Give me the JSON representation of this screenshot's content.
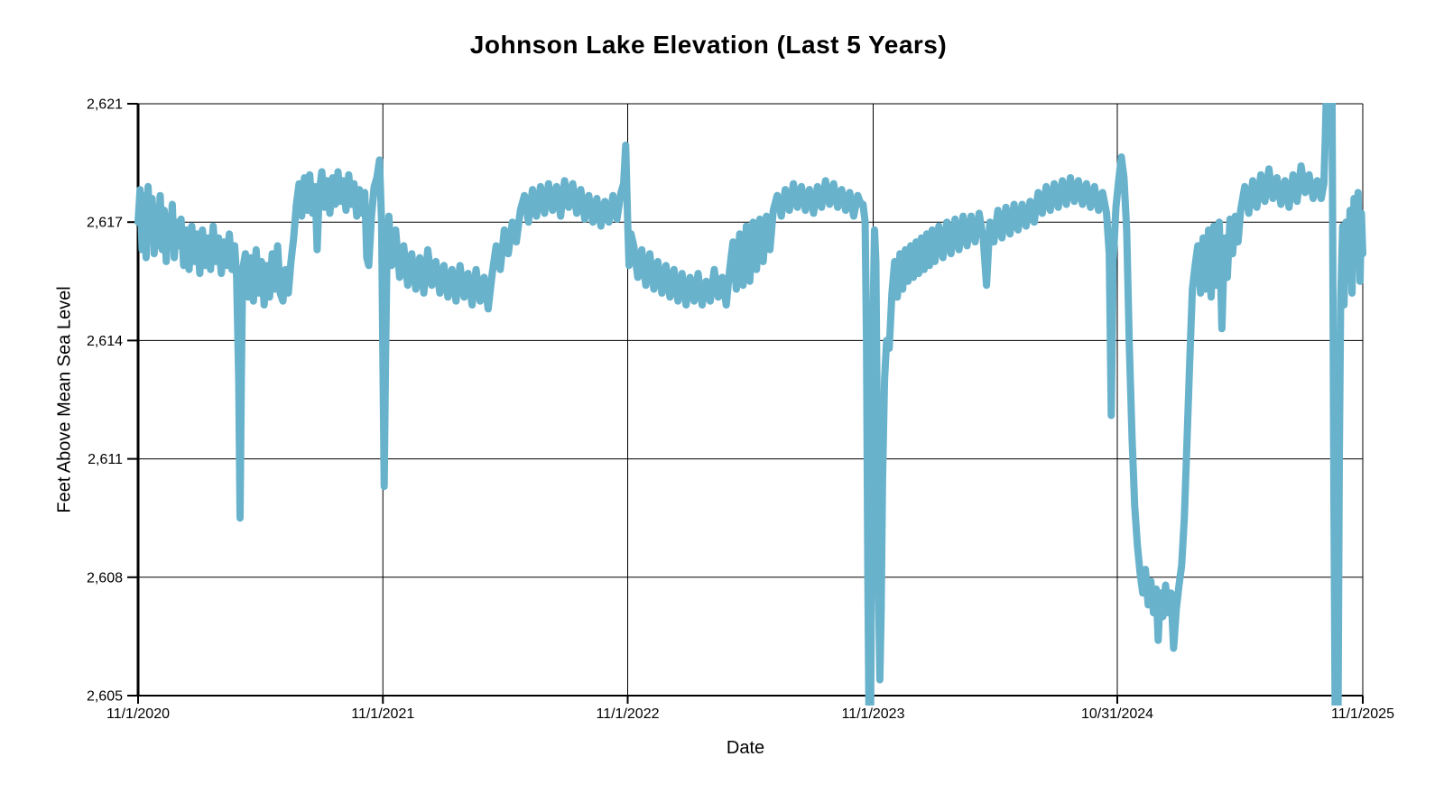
{
  "chart": {
    "title": "Johnson Lake Elevation (Last 5 Years)",
    "x_axis_title": "Date",
    "y_axis_title": "Feet Above Mean Sea Level"
  },
  "chart_data": {
    "type": "line",
    "title": "Johnson Lake Elevation (Last 5 Years)",
    "xlabel": "Date",
    "ylabel": "Feet Above Mean Sea Level",
    "legend": false,
    "grid": true,
    "line_color": "#68b2cc",
    "grid_color": "#000000",
    "background_color": "#ffffff",
    "ylim": [
      2605,
      2621
    ],
    "y_ticks": [
      2605,
      2608,
      2611,
      2614,
      2617,
      2621
    ],
    "y_tick_labels": [
      "2,605",
      "2,608",
      "2,611",
      "2,614",
      "2,617",
      "2,621"
    ],
    "x_tick_labels": [
      "11/1/2020",
      "11/1/2021",
      "11/1/2022",
      "11/1/2023",
      "10/31/2024",
      "11/1/2025"
    ],
    "x_tick_days": [
      0,
      365,
      730,
      1096,
      1460,
      1826
    ],
    "x_unit": "days since 11/1/2020",
    "y_unit": "feet above mean sea level",
    "points_day_value": [
      [
        0,
        2617.0
      ],
      [
        3,
        2618.1
      ],
      [
        6,
        2616.3
      ],
      [
        9,
        2617.9
      ],
      [
        12,
        2616.1
      ],
      [
        15,
        2618.2
      ],
      [
        18,
        2616.6
      ],
      [
        21,
        2617.8
      ],
      [
        24,
        2616.2
      ],
      [
        27,
        2617.5
      ],
      [
        30,
        2616.4
      ],
      [
        33,
        2617.9
      ],
      [
        36,
        2616.3
      ],
      [
        39,
        2617.4
      ],
      [
        42,
        2616.0
      ],
      [
        45,
        2617.2
      ],
      [
        48,
        2616.5
      ],
      [
        51,
        2617.6
      ],
      [
        54,
        2616.1
      ],
      [
        57,
        2617.0
      ],
      [
        60,
        2616.4
      ],
      [
        64,
        2617.1
      ],
      [
        68,
        2615.9
      ],
      [
        72,
        2616.8
      ],
      [
        76,
        2615.8
      ],
      [
        80,
        2616.9
      ],
      [
        84,
        2616.0
      ],
      [
        88,
        2616.7
      ],
      [
        92,
        2615.7
      ],
      [
        96,
        2616.8
      ],
      [
        100,
        2615.9
      ],
      [
        104,
        2616.6
      ],
      [
        108,
        2615.8
      ],
      [
        112,
        2616.9
      ],
      [
        116,
        2616.0
      ],
      [
        120,
        2616.6
      ],
      [
        124,
        2615.7
      ],
      [
        128,
        2616.5
      ],
      [
        132,
        2615.9
      ],
      [
        136,
        2616.7
      ],
      [
        140,
        2615.8
      ],
      [
        144,
        2616.4
      ],
      [
        147,
        2615.6
      ],
      [
        150,
        2613.0
      ],
      [
        152,
        2609.5
      ],
      [
        154,
        2613.0
      ],
      [
        156,
        2615.8
      ],
      [
        160,
        2616.2
      ],
      [
        164,
        2615.1
      ],
      [
        168,
        2616.1
      ],
      [
        172,
        2615.0
      ],
      [
        176,
        2616.3
      ],
      [
        180,
        2615.2
      ],
      [
        184,
        2616.0
      ],
      [
        188,
        2614.9
      ],
      [
        192,
        2615.9
      ],
      [
        196,
        2615.1
      ],
      [
        200,
        2616.2
      ],
      [
        204,
        2615.3
      ],
      [
        208,
        2616.4
      ],
      [
        212,
        2615.2
      ],
      [
        216,
        2615.0
      ],
      [
        220,
        2615.8
      ],
      [
        224,
        2615.2
      ],
      [
        228,
        2616.0
      ],
      [
        232,
        2616.6
      ],
      [
        236,
        2617.6
      ],
      [
        240,
        2618.3
      ],
      [
        244,
        2617.2
      ],
      [
        248,
        2618.5
      ],
      [
        252,
        2617.4
      ],
      [
        256,
        2618.6
      ],
      [
        260,
        2617.3
      ],
      [
        264,
        2618.2
      ],
      [
        267,
        2616.3
      ],
      [
        270,
        2618.0
      ],
      [
        274,
        2618.7
      ],
      [
        278,
        2617.5
      ],
      [
        282,
        2618.4
      ],
      [
        286,
        2617.3
      ],
      [
        290,
        2618.5
      ],
      [
        294,
        2617.6
      ],
      [
        298,
        2618.7
      ],
      [
        302,
        2617.7
      ],
      [
        306,
        2618.4
      ],
      [
        310,
        2617.4
      ],
      [
        314,
        2618.6
      ],
      [
        318,
        2617.6
      ],
      [
        322,
        2618.3
      ],
      [
        326,
        2617.2
      ],
      [
        330,
        2618.1
      ],
      [
        334,
        2617.3
      ],
      [
        338,
        2618.0
      ],
      [
        341,
        2616.1
      ],
      [
        344,
        2615.9
      ],
      [
        348,
        2617.2
      ],
      [
        352,
        2618.2
      ],
      [
        356,
        2618.5
      ],
      [
        360,
        2619.1
      ],
      [
        363,
        2617.0
      ],
      [
        365,
        2613.5
      ],
      [
        367,
        2610.3
      ],
      [
        369,
        2613.5
      ],
      [
        371,
        2616.0
      ],
      [
        374,
        2617.2
      ],
      [
        378,
        2615.9
      ],
      [
        384,
        2616.8
      ],
      [
        390,
        2615.6
      ],
      [
        396,
        2616.4
      ],
      [
        402,
        2615.4
      ],
      [
        408,
        2616.2
      ],
      [
        414,
        2615.3
      ],
      [
        420,
        2616.1
      ],
      [
        426,
        2615.2
      ],
      [
        432,
        2616.3
      ],
      [
        438,
        2615.4
      ],
      [
        444,
        2616.0
      ],
      [
        450,
        2615.2
      ],
      [
        456,
        2615.9
      ],
      [
        462,
        2615.1
      ],
      [
        468,
        2615.8
      ],
      [
        474,
        2615.0
      ],
      [
        480,
        2615.9
      ],
      [
        486,
        2615.1
      ],
      [
        492,
        2615.7
      ],
      [
        498,
        2614.9
      ],
      [
        504,
        2615.8
      ],
      [
        510,
        2615.0
      ],
      [
        516,
        2615.6
      ],
      [
        522,
        2614.8
      ],
      [
        528,
        2615.7
      ],
      [
        534,
        2616.4
      ],
      [
        540,
        2615.8
      ],
      [
        546,
        2616.8
      ],
      [
        552,
        2616.2
      ],
      [
        558,
        2617.0
      ],
      [
        564,
        2616.5
      ],
      [
        570,
        2617.4
      ],
      [
        576,
        2617.9
      ],
      [
        582,
        2617.0
      ],
      [
        588,
        2618.1
      ],
      [
        594,
        2617.2
      ],
      [
        600,
        2618.2
      ],
      [
        606,
        2617.3
      ],
      [
        612,
        2618.3
      ],
      [
        618,
        2617.4
      ],
      [
        624,
        2618.2
      ],
      [
        630,
        2617.2
      ],
      [
        636,
        2618.4
      ],
      [
        642,
        2617.5
      ],
      [
        648,
        2618.3
      ],
      [
        654,
        2617.3
      ],
      [
        660,
        2618.1
      ],
      [
        666,
        2617.1
      ],
      [
        672,
        2617.9
      ],
      [
        678,
        2617.0
      ],
      [
        684,
        2617.8
      ],
      [
        690,
        2616.9
      ],
      [
        696,
        2617.7
      ],
      [
        702,
        2617.0
      ],
      [
        708,
        2617.9
      ],
      [
        714,
        2617.1
      ],
      [
        720,
        2618.0
      ],
      [
        724,
        2618.3
      ],
      [
        727,
        2619.6
      ],
      [
        730,
        2617.0
      ],
      [
        732,
        2615.9
      ],
      [
        735,
        2616.7
      ],
      [
        739,
        2616.4
      ],
      [
        745,
        2615.6
      ],
      [
        751,
        2616.3
      ],
      [
        757,
        2615.4
      ],
      [
        763,
        2616.2
      ],
      [
        769,
        2615.3
      ],
      [
        775,
        2616.0
      ],
      [
        781,
        2615.2
      ],
      [
        787,
        2615.9
      ],
      [
        793,
        2615.1
      ],
      [
        799,
        2615.8
      ],
      [
        805,
        2615.0
      ],
      [
        811,
        2615.7
      ],
      [
        817,
        2614.9
      ],
      [
        823,
        2615.6
      ],
      [
        829,
        2615.0
      ],
      [
        835,
        2615.7
      ],
      [
        841,
        2614.9
      ],
      [
        847,
        2615.5
      ],
      [
        853,
        2615.0
      ],
      [
        859,
        2615.8
      ],
      [
        865,
        2615.1
      ],
      [
        871,
        2615.6
      ],
      [
        877,
        2614.9
      ],
      [
        882,
        2615.8
      ],
      [
        887,
        2616.5
      ],
      [
        892,
        2615.3
      ],
      [
        897,
        2616.7
      ],
      [
        902,
        2615.4
      ],
      [
        907,
        2616.9
      ],
      [
        912,
        2615.5
      ],
      [
        917,
        2617.0
      ],
      [
        922,
        2615.8
      ],
      [
        927,
        2617.1
      ],
      [
        932,
        2616.0
      ],
      [
        937,
        2617.2
      ],
      [
        942,
        2616.3
      ],
      [
        947,
        2617.4
      ],
      [
        953,
        2617.9
      ],
      [
        959,
        2617.2
      ],
      [
        965,
        2618.1
      ],
      [
        971,
        2617.4
      ],
      [
        977,
        2618.3
      ],
      [
        983,
        2617.5
      ],
      [
        989,
        2618.2
      ],
      [
        995,
        2617.4
      ],
      [
        1001,
        2618.1
      ],
      [
        1007,
        2617.3
      ],
      [
        1013,
        2618.2
      ],
      [
        1019,
        2617.5
      ],
      [
        1025,
        2618.4
      ],
      [
        1031,
        2617.6
      ],
      [
        1037,
        2618.3
      ],
      [
        1043,
        2617.5
      ],
      [
        1049,
        2618.1
      ],
      [
        1055,
        2617.4
      ],
      [
        1061,
        2618.0
      ],
      [
        1067,
        2617.2
      ],
      [
        1073,
        2617.9
      ],
      [
        1078,
        2617.6
      ],
      [
        1081,
        2617.6
      ],
      [
        1084,
        2617.0
      ],
      [
        1086,
        2614.0
      ],
      [
        1088,
        2608.0
      ],
      [
        1090,
        2604.0
      ],
      [
        1092,
        2604.1
      ],
      [
        1094,
        2609.0
      ],
      [
        1096,
        2614.8
      ],
      [
        1098,
        2616.8
      ],
      [
        1100,
        2616.0
      ],
      [
        1102,
        2612.0
      ],
      [
        1104,
        2607.8
      ],
      [
        1106,
        2605.4
      ],
      [
        1108,
        2607.2
      ],
      [
        1110,
        2610.5
      ],
      [
        1113,
        2613.0
      ],
      [
        1116,
        2614.0
      ],
      [
        1120,
        2613.8
      ],
      [
        1124,
        2615.2
      ],
      [
        1128,
        2616.0
      ],
      [
        1132,
        2615.1
      ],
      [
        1136,
        2616.2
      ],
      [
        1140,
        2615.3
      ],
      [
        1144,
        2616.3
      ],
      [
        1148,
        2615.5
      ],
      [
        1152,
        2616.4
      ],
      [
        1156,
        2615.6
      ],
      [
        1160,
        2616.5
      ],
      [
        1164,
        2615.7
      ],
      [
        1168,
        2616.6
      ],
      [
        1172,
        2615.8
      ],
      [
        1176,
        2616.7
      ],
      [
        1180,
        2615.9
      ],
      [
        1184,
        2616.8
      ],
      [
        1188,
        2616.0
      ],
      [
        1194,
        2616.9
      ],
      [
        1200,
        2616.1
      ],
      [
        1206,
        2617.0
      ],
      [
        1212,
        2616.2
      ],
      [
        1218,
        2617.1
      ],
      [
        1224,
        2616.3
      ],
      [
        1230,
        2617.2
      ],
      [
        1236,
        2616.4
      ],
      [
        1242,
        2617.2
      ],
      [
        1248,
        2616.5
      ],
      [
        1254,
        2617.3
      ],
      [
        1260,
        2616.6
      ],
      [
        1265,
        2615.4
      ],
      [
        1270,
        2617.0
      ],
      [
        1276,
        2616.5
      ],
      [
        1282,
        2617.4
      ],
      [
        1288,
        2616.6
      ],
      [
        1294,
        2617.5
      ],
      [
        1300,
        2616.7
      ],
      [
        1306,
        2617.6
      ],
      [
        1312,
        2616.8
      ],
      [
        1318,
        2617.6
      ],
      [
        1324,
        2616.9
      ],
      [
        1330,
        2617.7
      ],
      [
        1336,
        2617.0
      ],
      [
        1342,
        2618.0
      ],
      [
        1348,
        2617.3
      ],
      [
        1354,
        2618.2
      ],
      [
        1360,
        2617.4
      ],
      [
        1366,
        2618.3
      ],
      [
        1372,
        2617.5
      ],
      [
        1378,
        2618.4
      ],
      [
        1384,
        2617.6
      ],
      [
        1390,
        2618.5
      ],
      [
        1396,
        2617.7
      ],
      [
        1402,
        2618.4
      ],
      [
        1408,
        2617.6
      ],
      [
        1414,
        2618.3
      ],
      [
        1420,
        2617.5
      ],
      [
        1426,
        2618.2
      ],
      [
        1432,
        2617.4
      ],
      [
        1438,
        2618.0
      ],
      [
        1444,
        2617.3
      ],
      [
        1448,
        2616.2
      ],
      [
        1451,
        2612.1
      ],
      [
        1454,
        2616.0
      ],
      [
        1458,
        2617.5
      ],
      [
        1462,
        2618.4
      ],
      [
        1466,
        2619.2
      ],
      [
        1470,
        2618.5
      ],
      [
        1474,
        2616.8
      ],
      [
        1478,
        2613.8
      ],
      [
        1482,
        2611.5
      ],
      [
        1486,
        2609.8
      ],
      [
        1490,
        2608.8
      ],
      [
        1494,
        2608.1
      ],
      [
        1498,
        2607.6
      ],
      [
        1502,
        2608.2
      ],
      [
        1506,
        2607.3
      ],
      [
        1510,
        2607.9
      ],
      [
        1514,
        2607.1
      ],
      [
        1518,
        2607.7
      ],
      [
        1521,
        2606.4
      ],
      [
        1524,
        2607.6
      ],
      [
        1528,
        2607.0
      ],
      [
        1532,
        2607.8
      ],
      [
        1536,
        2607.1
      ],
      [
        1540,
        2607.6
      ],
      [
        1544,
        2606.2
      ],
      [
        1548,
        2607.2
      ],
      [
        1552,
        2607.8
      ],
      [
        1556,
        2608.3
      ],
      [
        1560,
        2609.5
      ],
      [
        1564,
        2611.5
      ],
      [
        1568,
        2613.5
      ],
      [
        1572,
        2615.3
      ],
      [
        1576,
        2615.9
      ],
      [
        1580,
        2616.4
      ],
      [
        1584,
        2615.2
      ],
      [
        1588,
        2616.6
      ],
      [
        1592,
        2615.3
      ],
      [
        1596,
        2616.8
      ],
      [
        1600,
        2615.1
      ],
      [
        1604,
        2616.9
      ],
      [
        1608,
        2615.4
      ],
      [
        1612,
        2617.0
      ],
      [
        1616,
        2614.3
      ],
      [
        1620,
        2616.6
      ],
      [
        1624,
        2615.6
      ],
      [
        1628,
        2617.1
      ],
      [
        1632,
        2616.2
      ],
      [
        1636,
        2617.2
      ],
      [
        1640,
        2616.5
      ],
      [
        1644,
        2617.4
      ],
      [
        1650,
        2618.2
      ],
      [
        1656,
        2617.3
      ],
      [
        1662,
        2618.4
      ],
      [
        1668,
        2617.5
      ],
      [
        1674,
        2618.6
      ],
      [
        1680,
        2617.7
      ],
      [
        1686,
        2618.8
      ],
      [
        1692,
        2617.8
      ],
      [
        1698,
        2618.5
      ],
      [
        1704,
        2617.6
      ],
      [
        1710,
        2618.4
      ],
      [
        1716,
        2617.5
      ],
      [
        1722,
        2618.6
      ],
      [
        1728,
        2617.7
      ],
      [
        1734,
        2618.9
      ],
      [
        1740,
        2618.0
      ],
      [
        1746,
        2618.6
      ],
      [
        1752,
        2617.8
      ],
      [
        1758,
        2618.4
      ],
      [
        1764,
        2617.8
      ],
      [
        1768,
        2618.3
      ],
      [
        1770,
        2619.8
      ],
      [
        1773,
        2622.5
      ],
      [
        1780,
        2622.3
      ],
      [
        1783,
        2610.0
      ],
      [
        1785,
        2604.0
      ],
      [
        1789,
        2604.0
      ],
      [
        1791,
        2611.0
      ],
      [
        1793,
        2615.0
      ],
      [
        1796,
        2616.9
      ],
      [
        1798,
        2614.9
      ],
      [
        1801,
        2617.0
      ],
      [
        1804,
        2615.6
      ],
      [
        1807,
        2617.4
      ],
      [
        1810,
        2615.2
      ],
      [
        1813,
        2617.8
      ],
      [
        1816,
        2616.0
      ],
      [
        1819,
        2618.0
      ],
      [
        1822,
        2615.5
      ],
      [
        1824,
        2617.3
      ],
      [
        1826,
        2616.2
      ]
    ]
  }
}
